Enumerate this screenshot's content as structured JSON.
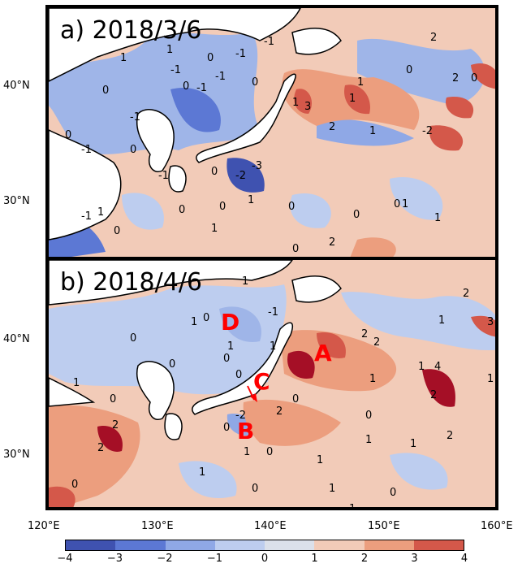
{
  "panels": [
    {
      "title": "a) 2018/3/6"
    },
    {
      "title": "b) 2018/4/6"
    }
  ],
  "y_ticks": [
    "40°N",
    "30°N"
  ],
  "x_ticks": [
    "120°E",
    "130°E",
    "140°E",
    "150°E",
    "160°E"
  ],
  "region_labels": [
    "A",
    "B",
    "C",
    "D"
  ],
  "contour_labels_a": [
    "-1",
    "0",
    "-1",
    "0",
    "-1",
    "1",
    "0",
    "-1",
    "-1",
    "1",
    "0",
    "-1",
    "0",
    "1",
    "2",
    "0",
    "-2",
    "1",
    "3",
    "1",
    "-2",
    "0",
    "-1",
    "2",
    "-3",
    "0",
    "1",
    "0",
    "1",
    "2",
    "0",
    "0",
    "1",
    "0",
    "0",
    "0",
    "-1",
    "1",
    "0",
    "1",
    "2",
    "1",
    "0",
    "-1"
  ],
  "contour_labels_b": [
    "1",
    "0",
    "-1",
    "0",
    "0",
    "1",
    "0",
    "1",
    "2",
    "0",
    "1",
    "0",
    "2",
    "1",
    "2",
    "1",
    "1",
    "0",
    "2",
    "2",
    "-2",
    "0",
    "1",
    "1",
    "0",
    "2",
    "1",
    "0",
    "0",
    "1",
    "1",
    "2",
    "1",
    "1",
    "0",
    "3",
    "2",
    "1",
    "1",
    "0",
    "4"
  ],
  "colorbar": {
    "ticks": [
      "−4",
      "−3",
      "−2",
      "−1",
      "0",
      "1",
      "2",
      "3",
      "4"
    ],
    "colors": [
      "#3f52b0",
      "#5c78d4",
      "#8fa8e6",
      "#bdcdef",
      "#dbe0ea",
      "#f2cbb8",
      "#ec9e7e",
      "#d4584a",
      "#a50f26"
    ]
  },
  "colors": {
    "background": "#f2cbb8",
    "land": "#ffffff",
    "negative": "#9fb5e8",
    "strong_negative": "#5c78d4",
    "positive": "#ec9e7e",
    "strong_positive": "#b8222e",
    "annotation": "#ff0000"
  }
}
